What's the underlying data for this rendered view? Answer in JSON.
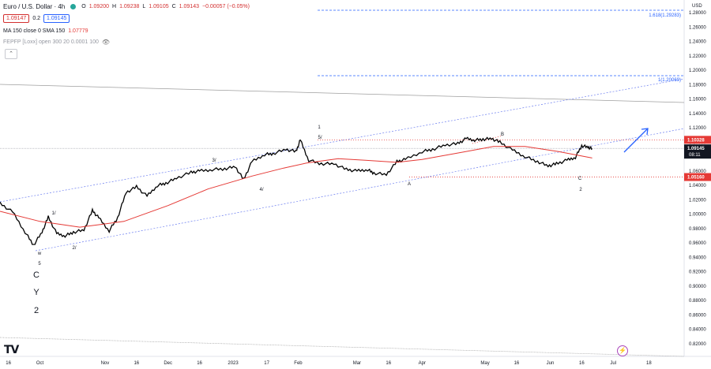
{
  "header": {
    "symbol": "Euro / U.S. Dollar · 4h",
    "open_label": "O",
    "open": "1.09200",
    "high_label": "H",
    "high": "1.09238",
    "low_label": "L",
    "low": "1.09105",
    "close_label": "C",
    "close": "1.09143",
    "change": "−0.00057 (−0.05%)",
    "bid": "1.09147",
    "spread": "0.2",
    "ask": "1.09145"
  },
  "indicators": {
    "ma_label": "MA 150 close 0 SMA 150",
    "ma_value": "1.07779",
    "fib_label": "FEPFP [Loxx] open 300 20 0.0001 100"
  },
  "price_scale": {
    "currency": "USD",
    "ticks": [
      "1.28000",
      "1.26000",
      "1.24000",
      "1.22000",
      "1.20000",
      "1.18000",
      "1.16000",
      "1.14000",
      "1.12000",
      "1.10000",
      "1.08000",
      "1.06000",
      "1.04000",
      "1.02000",
      "1.00000",
      "0.98000",
      "0.96000",
      "0.94000",
      "0.92000",
      "0.90000",
      "0.88000",
      "0.86000",
      "0.84000",
      "0.82000"
    ],
    "badges": {
      "upper_red": "1.10328",
      "current": "1.09145",
      "countdown": "08:11",
      "lower_red": "1.05160"
    }
  },
  "time_scale": {
    "ticks": [
      "16",
      "Oct",
      "Nov",
      "16",
      "Dec",
      "16",
      "2023",
      "17",
      "Feb",
      "Mar",
      "16",
      "Apr",
      "May",
      "16",
      "Jun",
      "16",
      "Jul",
      "18"
    ]
  },
  "fib_levels": {
    "level_1618": "1.618(1.29283)",
    "level_1": "1(1.20069)"
  },
  "wave_labels": {
    "w": "w",
    "five_a": "5",
    "C_big": "C",
    "Y_big": "Y",
    "two_big": "2",
    "one_slash": "1/",
    "two_slash": "2/",
    "three_slash": "3/",
    "four_slash": "4/",
    "one_top": "1",
    "five_slash": "5/",
    "A": "A",
    "B": "B",
    "C_small": "C",
    "two_small": "2"
  },
  "chart_data": {
    "type": "line",
    "title": "Euro / U.S. Dollar · 4h",
    "xlabel": "",
    "ylabel": "",
    "ylim": [
      0.81,
      1.3
    ],
    "x_range": [
      "2022-09-12",
      "2023-07-25"
    ],
    "grid": false,
    "series": [
      {
        "name": "EURUSD",
        "color": "#000000",
        "points": [
          {
            "x": "2022-09-12",
            "y": 1.015
          },
          {
            "x": "2022-09-18",
            "y": 1.003
          },
          {
            "x": "2022-09-24",
            "y": 0.975
          },
          {
            "x": "2022-09-28",
            "y": 0.957
          },
          {
            "x": "2022-10-02",
            "y": 0.975
          },
          {
            "x": "2022-10-05",
            "y": 0.996
          },
          {
            "x": "2022-10-09",
            "y": 0.973
          },
          {
            "x": "2022-10-13",
            "y": 0.97
          },
          {
            "x": "2022-10-17",
            "y": 0.975
          },
          {
            "x": "2022-10-22",
            "y": 0.978
          },
          {
            "x": "2022-10-26",
            "y": 1.005
          },
          {
            "x": "2022-10-29",
            "y": 0.995
          },
          {
            "x": "2022-11-03",
            "y": 0.977
          },
          {
            "x": "2022-11-07",
            "y": 0.995
          },
          {
            "x": "2022-11-11",
            "y": 1.03
          },
          {
            "x": "2022-11-16",
            "y": 1.038
          },
          {
            "x": "2022-11-21",
            "y": 1.025
          },
          {
            "x": "2022-11-26",
            "y": 1.04
          },
          {
            "x": "2022-11-30",
            "y": 1.043
          },
          {
            "x": "2022-12-05",
            "y": 1.05
          },
          {
            "x": "2022-12-12",
            "y": 1.058
          },
          {
            "x": "2022-12-16",
            "y": 1.06
          },
          {
            "x": "2022-12-22",
            "y": 1.062
          },
          {
            "x": "2022-12-28",
            "y": 1.063
          },
          {
            "x": "2023-01-02",
            "y": 1.066
          },
          {
            "x": "2023-01-06",
            "y": 1.048
          },
          {
            "x": "2023-01-10",
            "y": 1.073
          },
          {
            "x": "2023-01-16",
            "y": 1.083
          },
          {
            "x": "2023-01-20",
            "y": 1.084
          },
          {
            "x": "2023-01-26",
            "y": 1.09
          },
          {
            "x": "2023-01-31",
            "y": 1.087
          },
          {
            "x": "2023-02-02",
            "y": 1.103
          },
          {
            "x": "2023-02-06",
            "y": 1.075
          },
          {
            "x": "2023-02-12",
            "y": 1.07
          },
          {
            "x": "2023-02-18",
            "y": 1.07
          },
          {
            "x": "2023-02-24",
            "y": 1.062
          },
          {
            "x": "2023-03-01",
            "y": 1.06
          },
          {
            "x": "2023-03-06",
            "y": 1.062
          },
          {
            "x": "2023-03-09",
            "y": 1.057
          },
          {
            "x": "2023-03-15",
            "y": 1.055
          },
          {
            "x": "2023-03-20",
            "y": 1.073
          },
          {
            "x": "2023-03-24",
            "y": 1.076
          },
          {
            "x": "2023-04-01",
            "y": 1.087
          },
          {
            "x": "2023-04-06",
            "y": 1.09
          },
          {
            "x": "2023-04-12",
            "y": 1.096
          },
          {
            "x": "2023-04-18",
            "y": 1.098
          },
          {
            "x": "2023-04-22",
            "y": 1.105
          },
          {
            "x": "2023-04-26",
            "y": 1.103
          },
          {
            "x": "2023-04-30",
            "y": 1.104
          },
          {
            "x": "2023-05-04",
            "y": 1.105
          },
          {
            "x": "2023-05-08",
            "y": 1.1
          },
          {
            "x": "2023-05-14",
            "y": 1.089
          },
          {
            "x": "2023-05-20",
            "y": 1.08
          },
          {
            "x": "2023-05-26",
            "y": 1.073
          },
          {
            "x": "2023-05-31",
            "y": 1.067
          },
          {
            "x": "2023-06-04",
            "y": 1.07
          },
          {
            "x": "2023-06-09",
            "y": 1.075
          },
          {
            "x": "2023-06-13",
            "y": 1.079
          },
          {
            "x": "2023-06-16",
            "y": 1.095
          },
          {
            "x": "2023-06-19",
            "y": 1.093
          },
          {
            "x": "2023-06-21",
            "y": 1.091
          }
        ]
      },
      {
        "name": "MA 150",
        "color": "#e53935",
        "points": [
          {
            "x": "2022-09-12",
            "y": 1.004
          },
          {
            "x": "2022-10-01",
            "y": 0.99
          },
          {
            "x": "2022-10-20",
            "y": 0.982
          },
          {
            "x": "2022-11-10",
            "y": 0.99
          },
          {
            "x": "2022-12-01",
            "y": 1.012
          },
          {
            "x": "2022-12-20",
            "y": 1.035
          },
          {
            "x": "2023-01-10",
            "y": 1.053
          },
          {
            "x": "2023-01-25",
            "y": 1.064
          },
          {
            "x": "2023-02-05",
            "y": 1.071
          },
          {
            "x": "2023-02-20",
            "y": 1.077
          },
          {
            "x": "2023-03-05",
            "y": 1.075
          },
          {
            "x": "2023-03-20",
            "y": 1.072
          },
          {
            "x": "2023-04-01",
            "y": 1.076
          },
          {
            "x": "2023-04-20",
            "y": 1.086
          },
          {
            "x": "2023-05-05",
            "y": 1.094
          },
          {
            "x": "2023-05-20",
            "y": 1.094
          },
          {
            "x": "2023-06-05",
            "y": 1.087
          },
          {
            "x": "2023-06-21",
            "y": 1.078
          }
        ]
      }
    ]
  },
  "overlay_lines": {
    "channel_color": "#6d7ff0",
    "projection_color": "#2962ff",
    "fib_color": "#2962ff",
    "grey_line_color": "#9e9e9e",
    "dotted_red_color": "#e53935"
  }
}
